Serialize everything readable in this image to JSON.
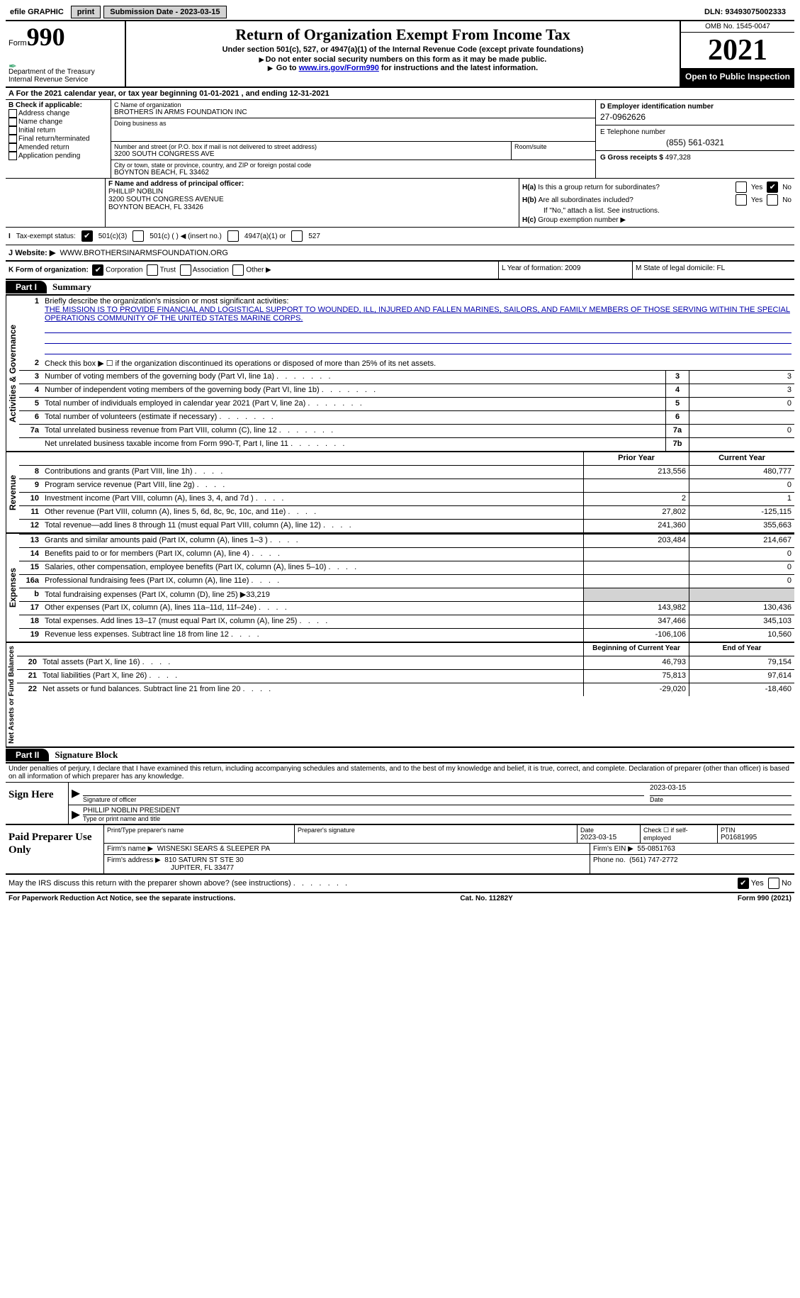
{
  "topbar": {
    "efile": "efile GRAPHIC",
    "print": "print",
    "submission": "Submission Date - 2023-03-15",
    "dln": "DLN: 93493075002333"
  },
  "header": {
    "form_prefix": "Form",
    "form_number": "990",
    "dept": "Department of the Treasury",
    "irs": "Internal Revenue Service",
    "title": "Return of Organization Exempt From Income Tax",
    "subtitle": "Under section 501(c), 527, or 4947(a)(1) of the Internal Revenue Code (except private foundations)",
    "note1": "Do not enter social security numbers on this form as it may be made public.",
    "note2_pre": "Go to ",
    "note2_link": "www.irs.gov/Form990",
    "note2_post": " for instructions and the latest information.",
    "omb": "OMB No. 1545-0047",
    "year": "2021",
    "open": "Open to Public Inspection"
  },
  "row_a": "A For the 2021 calendar year, or tax year beginning 01-01-2021   , and ending 12-31-2021",
  "col_b": {
    "header": "B Check if applicable:",
    "items": [
      "Address change",
      "Name change",
      "Initial return",
      "Final return/terminated",
      "Amended return",
      "Application pending"
    ]
  },
  "col_c": {
    "name_label": "C Name of organization",
    "name": "BROTHERS IN ARMS FOUNDATION INC",
    "dba_label": "Doing business as",
    "dba": "",
    "street_label": "Number and street (or P.O. box if mail is not delivered to street address)",
    "street": "3200 SOUTH CONGRESS AVE",
    "room_label": "Room/suite",
    "room": "",
    "city_label": "City or town, state or province, country, and ZIP or foreign postal code",
    "city": "BOYNTON BEACH, FL  33462"
  },
  "col_d": {
    "ein_label": "D Employer identification number",
    "ein": "27-0962626",
    "phone_label": "E Telephone number",
    "phone": "(855) 561-0321",
    "gross_label": "G Gross receipts $",
    "gross": "497,328"
  },
  "row_f": {
    "label": "F Name and address of principal officer:",
    "name": "PHILLIP NOBLIN",
    "street": "3200 SOUTH CONGRESS AVENUE",
    "city": "BOYNTON BEACH, FL  33426"
  },
  "row_h": {
    "ha_label": "Is this a group return for subordinates?",
    "ha_prefix": "H(a)",
    "hb_prefix": "H(b)",
    "hb_label": "Are all subordinates included?",
    "hb_note": "If \"No,\" attach a list. See instructions.",
    "hc_prefix": "H(c)",
    "hc_label": "Group exemption number ▶",
    "yes": "Yes",
    "no": "No"
  },
  "row_i": {
    "label": "Tax-exempt status:",
    "opt1": "501(c)(3)",
    "opt2": "501(c) (  ) ◀ (insert no.)",
    "opt3": "4947(a)(1) or",
    "opt4": "527"
  },
  "row_j": {
    "label": "Website: ▶",
    "value": "WWW.BROTHERSINARMSFOUNDATION.ORG",
    "j_prefix": "J"
  },
  "row_k": {
    "label": "K Form of organization:",
    "opts": [
      "Corporation",
      "Trust",
      "Association",
      "Other ▶"
    ],
    "l": "L Year of formation: 2009",
    "m": "M State of legal domicile: FL"
  },
  "part1": {
    "header": "Part I",
    "title": "Summary",
    "line1_label": "Briefly describe the organization's mission or most significant activities:",
    "mission": "THE MISSION IS TO PROVIDE FINANCIAL AND LOGISTICAL SUPPORT TO WOUNDED, ILL, INJURED AND FALLEN MARINES, SAILORS, AND FAMILY MEMBERS OF THOSE SERVING WITHIN THE SPECIAL OPERATIONS COMMUNITY OF THE UNITED STATES MARINE CORPS.",
    "line2": "Check this box ▶ ☐  if the organization discontinued its operations or disposed of more than 25% of its net assets.",
    "sidelabel_ag": "Activities & Governance",
    "sidelabel_rev": "Revenue",
    "sidelabel_exp": "Expenses",
    "sidelabel_na": "Net Assets or Fund Balances",
    "prior_year": "Prior Year",
    "current_year": "Current Year",
    "beg_year": "Beginning of Current Year",
    "end_year": "End of Year",
    "lines_ag": [
      {
        "n": "3",
        "t": "Number of voting members of the governing body (Part VI, line 1a)",
        "box": "3",
        "v": "3"
      },
      {
        "n": "4",
        "t": "Number of independent voting members of the governing body (Part VI, line 1b)",
        "box": "4",
        "v": "3"
      },
      {
        "n": "5",
        "t": "Total number of individuals employed in calendar year 2021 (Part V, line 2a)",
        "box": "5",
        "v": "0"
      },
      {
        "n": "6",
        "t": "Total number of volunteers (estimate if necessary)",
        "box": "6",
        "v": ""
      },
      {
        "n": "7a",
        "t": "Total unrelated business revenue from Part VIII, column (C), line 12",
        "box": "7a",
        "v": "0"
      },
      {
        "n": "",
        "t": "Net unrelated business taxable income from Form 990-T, Part I, line 11",
        "box": "7b",
        "v": ""
      }
    ],
    "lines_rev": [
      {
        "n": "8",
        "t": "Contributions and grants (Part VIII, line 1h)",
        "py": "213,556",
        "cy": "480,777"
      },
      {
        "n": "9",
        "t": "Program service revenue (Part VIII, line 2g)",
        "py": "",
        "cy": "0"
      },
      {
        "n": "10",
        "t": "Investment income (Part VIII, column (A), lines 3, 4, and 7d )",
        "py": "2",
        "cy": "1"
      },
      {
        "n": "11",
        "t": "Other revenue (Part VIII, column (A), lines 5, 6d, 8c, 9c, 10c, and 11e)",
        "py": "27,802",
        "cy": "-125,115"
      },
      {
        "n": "12",
        "t": "Total revenue—add lines 8 through 11 (must equal Part VIII, column (A), line 12)",
        "py": "241,360",
        "cy": "355,663"
      }
    ],
    "lines_exp": [
      {
        "n": "13",
        "t": "Grants and similar amounts paid (Part IX, column (A), lines 1–3 )",
        "py": "203,484",
        "cy": "214,667"
      },
      {
        "n": "14",
        "t": "Benefits paid to or for members (Part IX, column (A), line 4)",
        "py": "",
        "cy": "0"
      },
      {
        "n": "15",
        "t": "Salaries, other compensation, employee benefits (Part IX, column (A), lines 5–10)",
        "py": "",
        "cy": "0"
      },
      {
        "n": "16a",
        "t": "Professional fundraising fees (Part IX, column (A), line 11e)",
        "py": "",
        "cy": "0"
      },
      {
        "n": "b",
        "t": "Total fundraising expenses (Part IX, column (D), line 25) ▶33,219",
        "py": "grey",
        "cy": "grey"
      },
      {
        "n": "17",
        "t": "Other expenses (Part IX, column (A), lines 11a–11d, 11f–24e)",
        "py": "143,982",
        "cy": "130,436"
      },
      {
        "n": "18",
        "t": "Total expenses. Add lines 13–17 (must equal Part IX, column (A), line 25)",
        "py": "347,466",
        "cy": "345,103"
      },
      {
        "n": "19",
        "t": "Revenue less expenses. Subtract line 18 from line 12",
        "py": "-106,106",
        "cy": "10,560"
      }
    ],
    "lines_na": [
      {
        "n": "20",
        "t": "Total assets (Part X, line 16)",
        "py": "46,793",
        "cy": "79,154"
      },
      {
        "n": "21",
        "t": "Total liabilities (Part X, line 26)",
        "py": "75,813",
        "cy": "97,614"
      },
      {
        "n": "22",
        "t": "Net assets or fund balances. Subtract line 21 from line 20",
        "py": "-29,020",
        "cy": "-18,460"
      }
    ]
  },
  "part2": {
    "header": "Part II",
    "title": "Signature Block",
    "declaration": "Under penalties of perjury, I declare that I have examined this return, including accompanying schedules and statements, and to the best of my knowledge and belief, it is true, correct, and complete. Declaration of preparer (other than officer) is based on all information of which preparer has any knowledge.",
    "sign_here": "Sign Here",
    "sig_officer": "Signature of officer",
    "sig_date": "Date",
    "date_val": "2023-03-15",
    "officer_name": "PHILLIP NOBLIN  PRESIDENT",
    "type_name": "Type or print name and title",
    "paid_prep": "Paid Preparer Use Only",
    "prep_name_label": "Print/Type preparer's name",
    "prep_sig_label": "Preparer's signature",
    "prep_date_label": "Date",
    "prep_date": "2023-03-15",
    "check_self": "Check ☐ if self-employed",
    "ptin_label": "PTIN",
    "ptin": "P01681995",
    "firm_name_label": "Firm's name    ▶",
    "firm_name": "WISNESKI SEARS & SLEEPER PA",
    "firm_ein_label": "Firm's EIN ▶",
    "firm_ein": "55-0851763",
    "firm_addr_label": "Firm's address ▶",
    "firm_addr1": "810 SATURN ST STE 30",
    "firm_addr2": "JUPITER, FL  33477",
    "firm_phone_label": "Phone no.",
    "firm_phone": "(561) 747-2772",
    "may_irs": "May the IRS discuss this return with the preparer shown above? (see instructions)"
  },
  "footer": {
    "pra": "For Paperwork Reduction Act Notice, see the separate instructions.",
    "cat": "Cat. No. 11282Y",
    "form": "Form 990 (2021)"
  }
}
